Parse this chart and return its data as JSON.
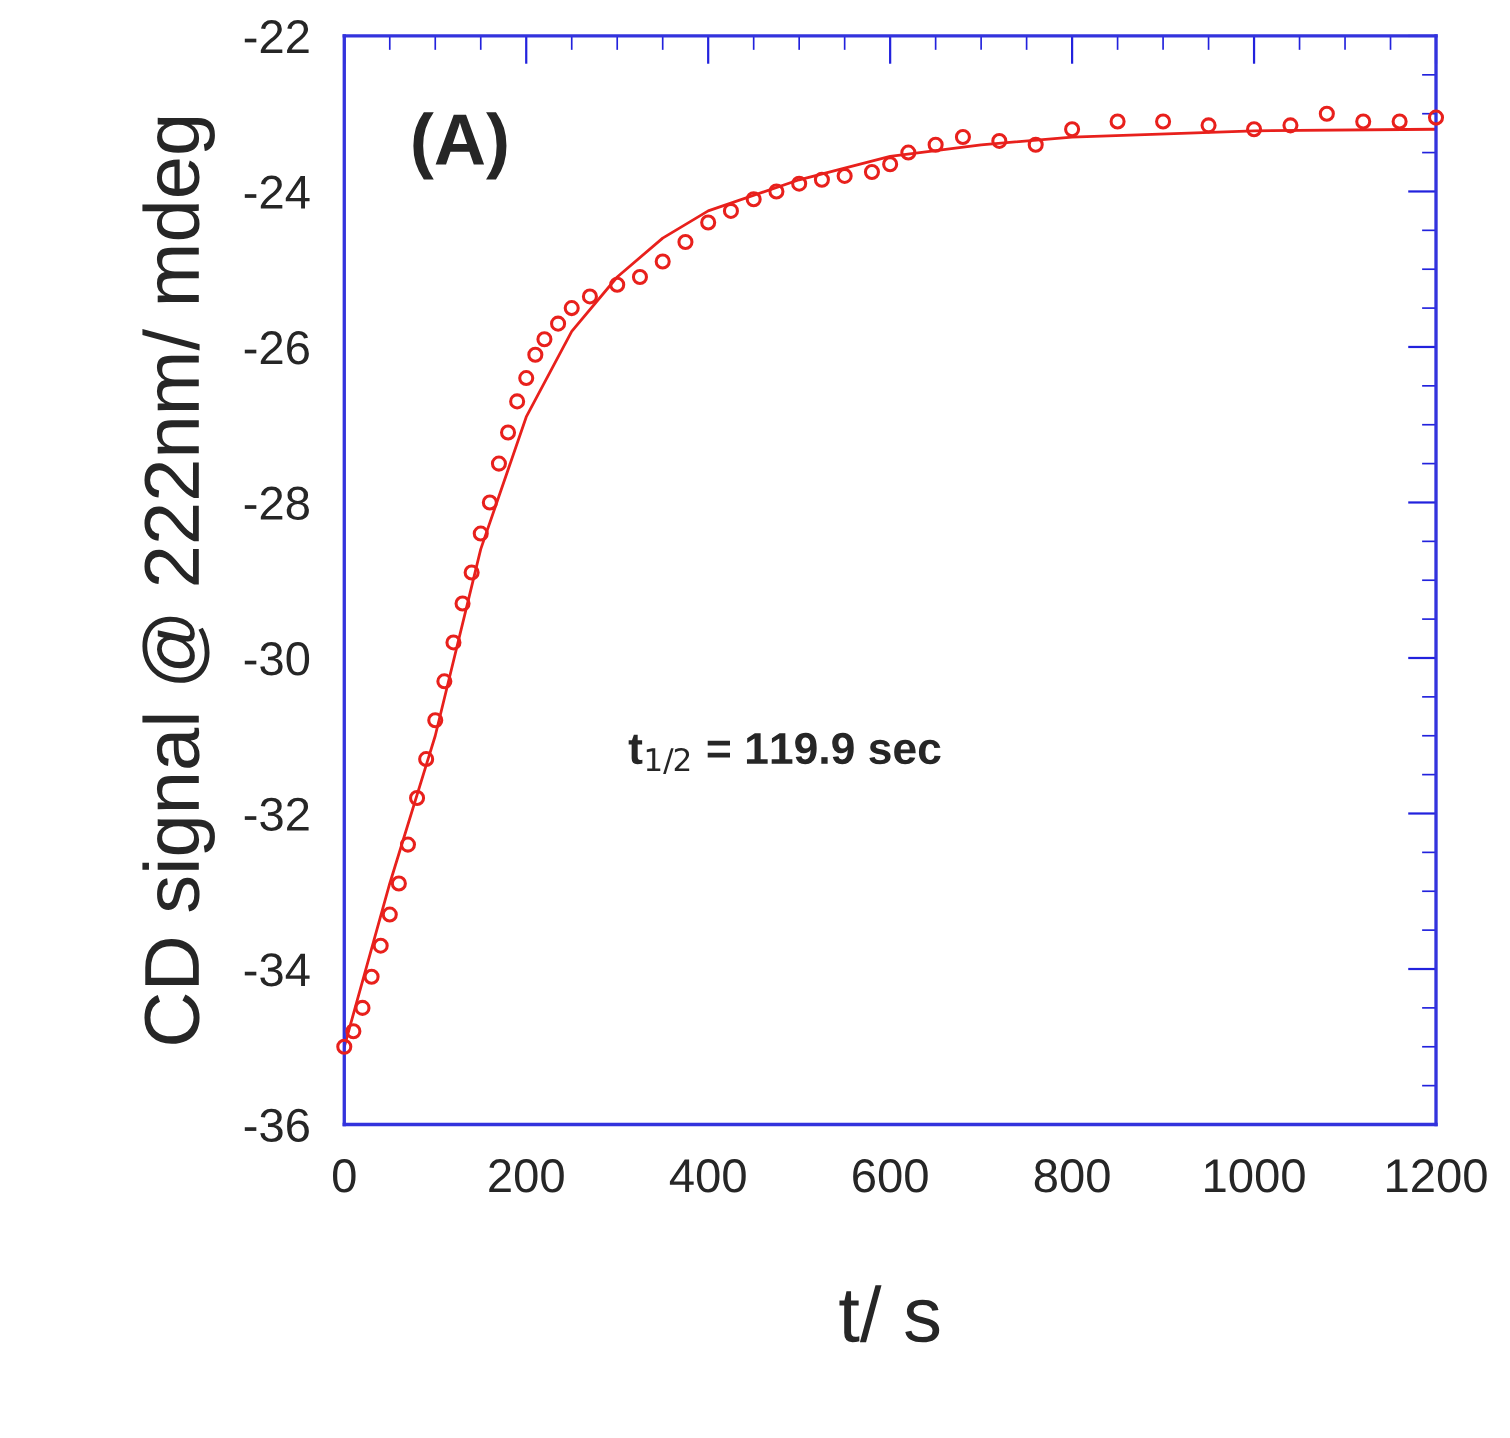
{
  "chart_data": {
    "type": "scatter",
    "xlabel": "t/ s",
    "ylabel": "CD signal @ 222nm/ mdeg",
    "annotations": [
      "(A)",
      "t$_{1/2}$ = 119.9 sec"
    ],
    "xlim": [
      0,
      1200
    ],
    "xticks": [
      0,
      200,
      400,
      600,
      800,
      1000,
      1200
    ],
    "ylim": [
      -36,
      -22
    ],
    "yticks": [
      -36,
      -34,
      -32,
      -30,
      -28,
      -26,
      -24,
      -22
    ],
    "grid": false,
    "legend": false,
    "series": [
      {
        "marker": "circle",
        "color": "#e8201c",
        "x": [
          0,
          10,
          20,
          30,
          40,
          50,
          60,
          70,
          80,
          90,
          100,
          110,
          120,
          130,
          140,
          150,
          160,
          170,
          180,
          190,
          200,
          210,
          220,
          235,
          250,
          270,
          300,
          325,
          350,
          375,
          400,
          425,
          450,
          475,
          500,
          525,
          550,
          580,
          600,
          620,
          650,
          680,
          720,
          760,
          800,
          850,
          900,
          950,
          1000,
          1040,
          1080,
          1120,
          1160,
          1200
        ],
        "values": [
          -35.0,
          -34.8,
          -34.5,
          -34.1,
          -33.7,
          -33.3,
          -32.9,
          -32.4,
          -31.8,
          -31.3,
          -30.8,
          -30.3,
          -29.8,
          -29.3,
          -28.9,
          -28.4,
          -28.0,
          -27.5,
          -27.1,
          -26.7,
          -26.4,
          -26.1,
          -25.9,
          -25.7,
          -25.5,
          -25.35,
          -25.2,
          -25.1,
          -24.9,
          -24.65,
          -24.4,
          -24.25,
          -24.1,
          -24.0,
          -23.9,
          -23.85,
          -23.8,
          -23.75,
          -23.65,
          -23.5,
          -23.4,
          -23.3,
          -23.35,
          -23.4,
          -23.2,
          -23.1,
          -23.1,
          -23.15,
          -23.2,
          -23.15,
          -23.0,
          -23.1,
          -23.1,
          -23.05
        ]
      },
      {
        "type": "line",
        "line_style": "solid",
        "color": "#e8201c",
        "x": [
          0,
          50,
          100,
          150,
          200,
          250,
          300,
          350,
          400,
          500,
          600,
          700,
          800,
          1000,
          1200
        ],
        "values": [
          -35.0,
          -32.9,
          -31.0,
          -28.6,
          -26.9,
          -25.8,
          -25.1,
          -24.6,
          -24.25,
          -23.85,
          -23.55,
          -23.4,
          -23.3,
          -23.22,
          -23.2
        ]
      }
    ]
  }
}
